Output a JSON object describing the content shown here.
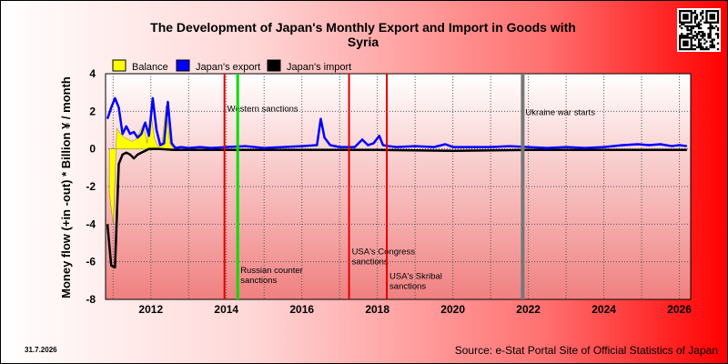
{
  "chart_data": {
    "type": "line",
    "title_line1": "The Development of Japan's Monthly Export and Import in Goods with",
    "title_line2": "Syria",
    "ylabel": "Money flow (+in -out) * Billion ¥ / month",
    "xlabel": "",
    "xlim": [
      2010.8,
      2026.3
    ],
    "ylim": [
      -8,
      4
    ],
    "yticks": [
      4,
      2,
      0,
      -2,
      -4,
      -6,
      -8
    ],
    "xticks": [
      2012,
      2014,
      2016,
      2018,
      2020,
      2022,
      2024,
      2026
    ],
    "grid": true,
    "legend_position": "top-left",
    "source": "Source: e-Stat Portal Site of Official Statistics of Japan",
    "date_label": "31.7.2026",
    "series": [
      {
        "name": "Balance",
        "color": "#ffff00",
        "x": [
          2010.9,
          2011.0,
          2011.1,
          2011.2,
          2011.3,
          2011.4,
          2011.5,
          2011.6,
          2011.7,
          2011.8,
          2011.9,
          2012.0,
          2012.1,
          2012.2,
          2012.3,
          2012.4,
          2012.5,
          2012.6,
          2012.7
        ],
        "values": [
          -2.3,
          -4.0,
          1.1,
          0.8,
          0.6,
          0.5,
          0.4,
          0.5,
          0.9,
          1.3,
          0.3,
          1.9,
          0.5,
          0.1,
          0.3,
          2.3,
          0.3,
          0.0,
          0.0
        ]
      },
      {
        "name": "Japan's export",
        "color": "#0000ff",
        "x": [
          2010.85,
          2010.95,
          2011.05,
          2011.15,
          2011.25,
          2011.35,
          2011.45,
          2011.55,
          2011.65,
          2011.75,
          2011.85,
          2011.95,
          2012.05,
          2012.15,
          2012.25,
          2012.35,
          2012.45,
          2012.55,
          2012.65,
          2012.8,
          2013.0,
          2013.3,
          2013.6,
          2014.0,
          2014.5,
          2015.0,
          2015.5,
          2016.0,
          2016.4,
          2016.5,
          2016.6,
          2016.75,
          2017.0,
          2017.4,
          2017.6,
          2017.75,
          2017.9,
          2018.05,
          2018.15,
          2018.3,
          2018.5,
          2019.0,
          2019.5,
          2019.8,
          2020.0,
          2020.5,
          2021.0,
          2021.5,
          2022.0,
          2022.5,
          2023.0,
          2023.5,
          2024.0,
          2024.5,
          2024.9,
          2025.2,
          2025.5,
          2025.8,
          2026.0,
          2026.2
        ],
        "values": [
          1.6,
          2.2,
          2.7,
          2.2,
          0.8,
          1.2,
          0.8,
          0.9,
          0.6,
          0.8,
          1.4,
          0.7,
          2.7,
          1.0,
          0.2,
          0.3,
          2.5,
          0.3,
          0.05,
          0.1,
          0.05,
          0.1,
          0.05,
          0.1,
          0.15,
          0.05,
          0.1,
          0.15,
          0.2,
          1.6,
          0.6,
          0.2,
          0.1,
          0.1,
          0.5,
          0.2,
          0.3,
          0.7,
          0.2,
          0.15,
          0.1,
          0.15,
          0.1,
          0.25,
          0.1,
          0.1,
          0.1,
          0.15,
          0.1,
          0.05,
          0.1,
          0.05,
          0.1,
          0.2,
          0.25,
          0.2,
          0.25,
          0.15,
          0.2,
          0.15
        ]
      },
      {
        "name": "Japan's import",
        "color": "#000000",
        "x": [
          2010.85,
          2010.95,
          2011.05,
          2011.15,
          2011.25,
          2011.35,
          2011.45,
          2011.55,
          2011.65,
          2011.75,
          2011.85,
          2011.95,
          2012.2,
          2012.6,
          2013.0,
          2014.0,
          2016.0,
          2018.0,
          2020.0,
          2022.0,
          2024.0,
          2026.0,
          2026.2
        ],
        "values": [
          -4.0,
          -6.2,
          -6.3,
          -0.8,
          -0.3,
          -0.2,
          -0.3,
          -0.5,
          -0.3,
          -0.2,
          -0.1,
          0.0,
          0.0,
          -0.05,
          -0.05,
          -0.05,
          -0.05,
          -0.05,
          -0.1,
          -0.05,
          -0.05,
          -0.05,
          -0.05
        ]
      }
    ],
    "annotations": [
      {
        "x": 2013.95,
        "color": "#e00000",
        "width": 2,
        "label_lines": [
          "Western sanctions"
        ],
        "label_y": 2.0
      },
      {
        "x": 2014.3,
        "color": "#00dd00",
        "width": 3,
        "label_lines": [
          "Russian counter",
          "sanctions"
        ],
        "label_y": -6.6
      },
      {
        "x": 2017.25,
        "color": "#e00000",
        "width": 2,
        "label_lines": [
          "USA's Congress",
          "sanctions"
        ],
        "label_y": -5.6
      },
      {
        "x": 2018.25,
        "color": "#e00000",
        "width": 2,
        "label_lines": [
          "USA's Skribal",
          "sanctions"
        ],
        "label_y": -6.9
      },
      {
        "x": 2021.85,
        "color": "#777777",
        "width": 4,
        "label_lines": [
          "Ukraine war starts"
        ],
        "label_y": 1.8
      }
    ]
  }
}
